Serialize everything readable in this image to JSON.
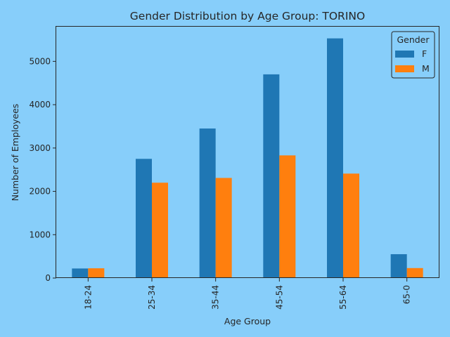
{
  "chart_data": {
    "type": "bar",
    "title": "Gender Distribution by Age Group: TORINO",
    "xlabel": "Age Group",
    "ylabel": "Number of Employees",
    "categories": [
      "18-24",
      "25-34",
      "35-44",
      "45-54",
      "55-64",
      "65-0"
    ],
    "series": [
      {
        "name": "F",
        "color": "#1f77b4",
        "values": [
          220,
          2750,
          3450,
          4700,
          5530,
          550
        ]
      },
      {
        "name": "M",
        "color": "#ff7f0e",
        "values": [
          225,
          2200,
          2310,
          2830,
          2410,
          230
        ]
      }
    ],
    "ylim": [
      0,
      5800
    ],
    "yticks": [
      0,
      1000,
      2000,
      3000,
      4000,
      5000
    ],
    "legend": {
      "title": "Gender",
      "placement": "top-right"
    },
    "grid": false,
    "background": "#87cefa"
  }
}
